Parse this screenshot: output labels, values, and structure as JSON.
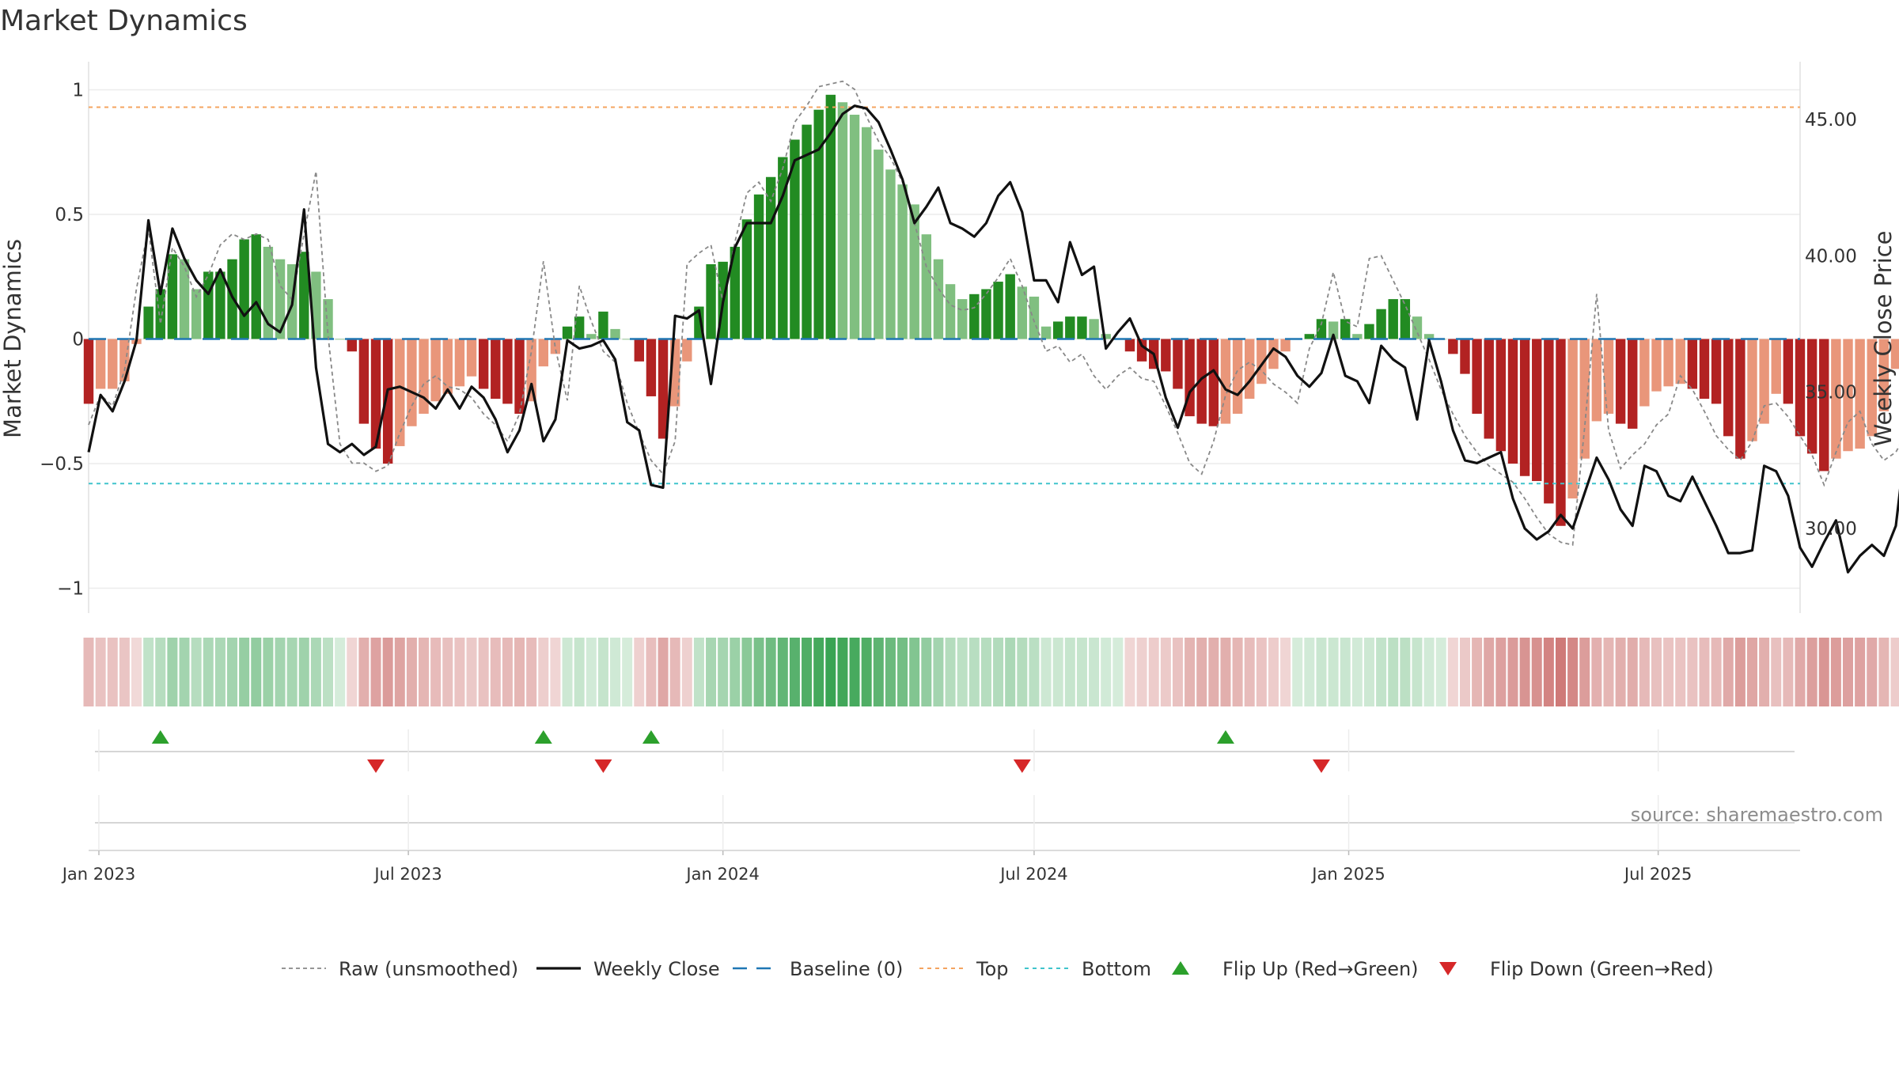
{
  "chart_data": {
    "type": "bar",
    "title": "Market Dynamics",
    "ylabel": "Market Dynamics",
    "y2label": "Weekly Close Price",
    "ylim": [
      -1.1,
      1.1
    ],
    "y2lim": [
      26.9,
      47.0
    ],
    "yticks": [
      {
        "value": 1,
        "label": "1"
      },
      {
        "value": 0.5,
        "label": "0.5"
      },
      {
        "value": 0,
        "label": "0"
      },
      {
        "value": -0.5,
        "label": "−0.5"
      },
      {
        "value": -1,
        "label": "−1"
      }
    ],
    "y2ticks": [
      {
        "value": 45,
        "label": "45.00"
      },
      {
        "value": 40,
        "label": "40.00"
      },
      {
        "value": 35,
        "label": "35.00"
      },
      {
        "value": 30,
        "label": "30.00"
      }
    ],
    "xlim": [
      "2022-12-26",
      "2025-09-22"
    ],
    "xticks": [
      {
        "date": "2023-01-01",
        "label": "Jan 2023"
      },
      {
        "date": "2023-07-01",
        "label": "Jul 2023"
      },
      {
        "date": "2024-01-01",
        "label": "Jan 2024"
      },
      {
        "date": "2024-07-01",
        "label": "Jul 2024"
      },
      {
        "date": "2025-01-01",
        "label": "Jan 2025"
      },
      {
        "date": "2025-07-01",
        "label": "Jul 2025"
      }
    ],
    "start_date": "2022-12-26",
    "top_level": 0.93,
    "bottom_level": -0.58,
    "baseline": 0,
    "dynamics": [
      -0.26,
      -0.2,
      -0.2,
      -0.17,
      -0.02,
      0.13,
      0.2,
      0.34,
      0.32,
      0.2,
      0.27,
      0.27,
      0.32,
      0.4,
      0.42,
      0.37,
      0.32,
      0.3,
      0.35,
      0.27,
      0.16,
      0.0,
      -0.05,
      -0.34,
      -0.44,
      -0.5,
      -0.43,
      -0.35,
      -0.3,
      -0.25,
      -0.22,
      -0.19,
      -0.15,
      -0.2,
      -0.24,
      -0.26,
      -0.3,
      -0.25,
      -0.11,
      -0.06,
      0.05,
      0.09,
      0.02,
      0.11,
      0.04,
      0.0,
      -0.09,
      -0.23,
      -0.4,
      -0.27,
      -0.09,
      0.13,
      0.3,
      0.31,
      0.37,
      0.48,
      0.58,
      0.65,
      0.73,
      0.8,
      0.86,
      0.92,
      0.98,
      0.95,
      0.9,
      0.85,
      0.76,
      0.68,
      0.62,
      0.54,
      0.42,
      0.32,
      0.22,
      0.16,
      0.18,
      0.2,
      0.23,
      0.26,
      0.21,
      0.17,
      0.05,
      0.07,
      0.09,
      0.09,
      0.08,
      0.02,
      0.0,
      -0.05,
      -0.09,
      -0.12,
      -0.13,
      -0.2,
      -0.31,
      -0.34,
      -0.35,
      -0.34,
      -0.3,
      -0.24,
      -0.18,
      -0.12,
      -0.05,
      0.0,
      0.02,
      0.08,
      0.07,
      0.08,
      0.02,
      0.06,
      0.12,
      0.16,
      0.16,
      0.09,
      0.02,
      0.0,
      -0.06,
      -0.14,
      -0.3,
      -0.4,
      -0.45,
      -0.5,
      -0.55,
      -0.57,
      -0.66,
      -0.75,
      -0.64,
      -0.48,
      -0.33,
      -0.3,
      -0.34,
      -0.36,
      -0.27,
      -0.21,
      -0.19,
      -0.18,
      -0.2,
      -0.24,
      -0.26,
      -0.39,
      -0.48,
      -0.41,
      -0.34,
      -0.22,
      -0.26,
      -0.39,
      -0.46,
      -0.53,
      -0.48,
      -0.45,
      -0.44,
      -0.39,
      -0.29,
      -0.12,
      -0.09,
      -0.09
    ],
    "flip_up_dates": [
      "2023-02-06",
      "2023-09-18",
      "2023-11-20",
      "2024-10-21"
    ],
    "flip_down_dates": [
      "2023-06-12",
      "2023-10-23",
      "2024-06-24",
      "2024-12-16"
    ],
    "series": [
      {
        "name": "Raw (unsmoothed)",
        "values": [
          33.8,
          34.9,
          34.5,
          35.8,
          38.8,
          41.0,
          37.5,
          40.3,
          39.6,
          38.5,
          39.3,
          40.4,
          40.8,
          40.6,
          40.8,
          40.6,
          38.9,
          38.4,
          40.8,
          43.1,
          37.1,
          33.1,
          32.4,
          32.4,
          32.1,
          32.3,
          33.5,
          34.5,
          35.3,
          35.6,
          35.2,
          35.1,
          34.8,
          34.2,
          33.8,
          33.2,
          34.2,
          36.5,
          39.8,
          36.6,
          34.7,
          38.9,
          37.6,
          36.5,
          36.1,
          34.6,
          33.5,
          32.5,
          32.0,
          33.2,
          39.7,
          40.1,
          40.4,
          38.3,
          40.5,
          42.3,
          42.7,
          42.0,
          43.2,
          44.9,
          45.5,
          46.2,
          46.3,
          46.4,
          46.1,
          45.1,
          44.2,
          43.6,
          42.7,
          41.2,
          39.6,
          38.8,
          38.2,
          38.0,
          38.1,
          38.6,
          39.2,
          39.9,
          38.9,
          37.6,
          36.5,
          36.7,
          36.1,
          36.4,
          35.6,
          35.1,
          35.6,
          35.9,
          35.5,
          35.4,
          34.5,
          33.5,
          32.4,
          32.0,
          33.2,
          34.9,
          35.8,
          36.1,
          35.8,
          35.3,
          35.0,
          34.6,
          36.6,
          37.5,
          39.4,
          37.6,
          37.4,
          39.9,
          40.0,
          39.1,
          38.2,
          37.2,
          36.2,
          35.1,
          34.2,
          33.4,
          32.8,
          32.3,
          32.0,
          31.7,
          31.1,
          30.4,
          29.8,
          29.5,
          29.4,
          33.7,
          38.6,
          33.6,
          32.2,
          32.7,
          33.1,
          33.8,
          34.2,
          35.6,
          35.1,
          34.3,
          33.4,
          32.9,
          32.5,
          33.2,
          34.5,
          34.6,
          34.1,
          33.4,
          32.7,
          31.6,
          32.8,
          33.9,
          34.3,
          33.1,
          32.5,
          32.8,
          33.6,
          35.5,
          38.6,
          38.1,
          32.9,
          33.6
        ]
      },
      {
        "name": "Weekly Close",
        "values": [
          32.8,
          34.9,
          34.3,
          35.4,
          36.9,
          41.3,
          38.6,
          41.0,
          39.9,
          39.1,
          38.6,
          39.5,
          38.5,
          37.8,
          38.3,
          37.5,
          37.2,
          38.2,
          41.7,
          35.9,
          33.1,
          32.8,
          33.1,
          32.7,
          33.0,
          35.1,
          35.2,
          35.0,
          34.8,
          34.4,
          35.1,
          34.4,
          35.2,
          34.8,
          34.0,
          32.8,
          33.6,
          35.3,
          33.2,
          34.0,
          36.9,
          36.6,
          36.7,
          36.9,
          36.2,
          33.9,
          33.6,
          31.6,
          31.5,
          37.8,
          37.7,
          38.0,
          35.3,
          38.3,
          40.3,
          41.2,
          41.2,
          41.2,
          42.2,
          43.5,
          43.7,
          43.9,
          44.5,
          45.2,
          45.5,
          45.4,
          44.9,
          43.9,
          42.8,
          41.2,
          41.8,
          42.5,
          41.2,
          41.0,
          40.7,
          41.2,
          42.2,
          42.7,
          41.6,
          39.1,
          39.1,
          38.3,
          40.5,
          39.3,
          39.6,
          36.6,
          37.2,
          37.7,
          36.7,
          36.4,
          34.8,
          33.7,
          35.0,
          35.5,
          35.8,
          35.1,
          34.9,
          35.4,
          36.0,
          36.6,
          36.3,
          35.6,
          35.2,
          35.7,
          37.1,
          35.6,
          35.4,
          34.6,
          36.7,
          36.2,
          35.9,
          34.0,
          36.9,
          35.4,
          33.6,
          32.5,
          32.4,
          32.6,
          32.8,
          31.1,
          30.0,
          29.6,
          29.9,
          30.5,
          30.0,
          31.3,
          32.6,
          31.8,
          30.7,
          30.1,
          32.3,
          32.1,
          31.2,
          31.0,
          31.9,
          31.0,
          30.1,
          29.1,
          29.1,
          29.2,
          32.3,
          32.1,
          31.2,
          29.3,
          28.6,
          29.5,
          30.3,
          28.4,
          29.0,
          29.4,
          29.0,
          30.1,
          33.8,
          33.9,
          29.9,
          31.0
        ]
      },
      {
        "name": "Baseline (0)"
      },
      {
        "name": "Top"
      },
      {
        "name": "Bottom"
      },
      {
        "name": "Flip Up (Red→Green)"
      },
      {
        "name": "Flip Down (Green→Red)"
      }
    ],
    "legend_position": "bottom-center",
    "source_note": "source: sharemaestro.com",
    "colors": {
      "pos_strong": "#228b22",
      "pos_light": "#80bf80",
      "neg_strong": "#b22222",
      "neg_light": "#e9967a",
      "raw_line": "#888888",
      "close_line": "#111111",
      "baseline": "#1f77b4",
      "top": "#f4a460",
      "bottom": "#40c4cc",
      "flip_up": "#2ca02c",
      "flip_down": "#d62728",
      "heat_pos": "#2e9e48",
      "heat_neg": "#c0504d"
    }
  }
}
